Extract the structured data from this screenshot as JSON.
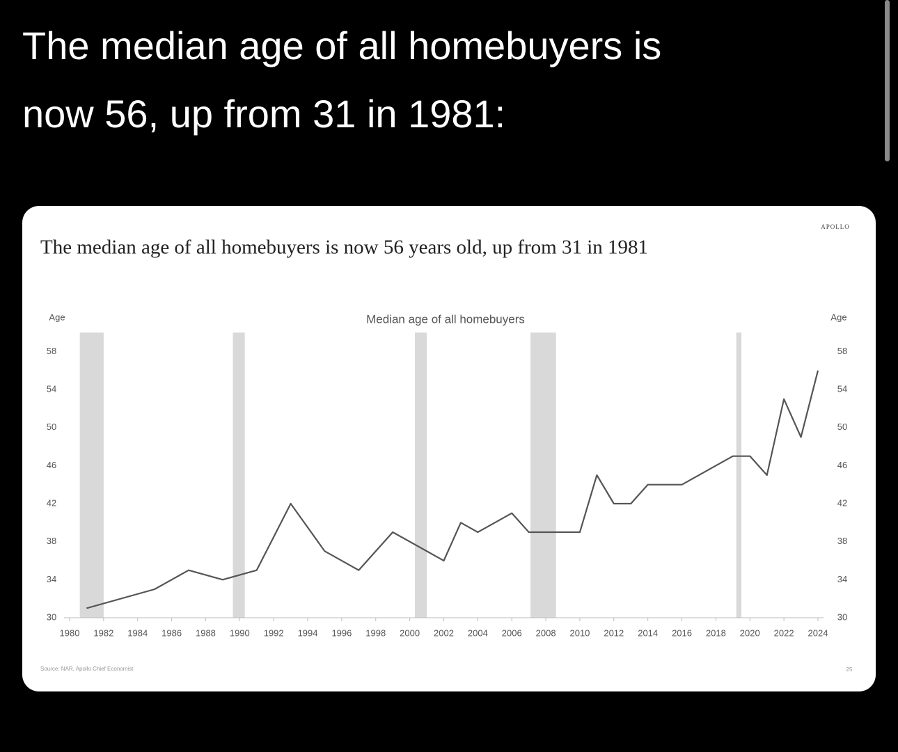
{
  "tweet_text": [
    "The median age of all homebuyers is",
    "now 56, up from 31 in 1981:"
  ],
  "chart_data": {
    "type": "line",
    "title": "The median age of all homebuyers is now 56 years old, up from 31 in 1981",
    "subtitle": "Median age of all homebuyers",
    "brand": "APOLLO",
    "y_label": "Age",
    "y2_label": "Age",
    "source": "Source: NAR, Apollo Chief Economist",
    "page_number": "25",
    "x": [
      1981,
      1985,
      1987,
      1989,
      1991,
      1993,
      1995,
      1997,
      1999,
      2002,
      2003,
      2004,
      2006,
      2007,
      2010,
      2011,
      2012,
      2013,
      2014,
      2016,
      2019,
      2020,
      2021,
      2022,
      2023,
      2024
    ],
    "values": [
      31,
      33,
      35,
      34,
      35,
      42,
      37,
      35,
      39,
      36,
      40,
      39,
      41,
      39,
      39,
      45,
      42,
      42,
      44,
      44,
      47,
      47,
      45,
      53,
      49,
      56
    ],
    "color": "#555555",
    "shaded_periods": [
      [
        1980.6,
        1982.0
      ],
      [
        1989.6,
        1990.3
      ],
      [
        2000.3,
        2001.0
      ],
      [
        2007.1,
        2008.6
      ],
      [
        2019.2,
        2019.5
      ]
    ],
    "shade_color": "#d9d9d9",
    "xlim": [
      1980,
      2024
    ],
    "xticks": [
      1980,
      1982,
      1984,
      1986,
      1988,
      1990,
      1992,
      1994,
      1996,
      1998,
      2000,
      2002,
      2004,
      2006,
      2008,
      2010,
      2012,
      2014,
      2016,
      2018,
      2020,
      2022,
      2024
    ],
    "ylim": [
      30,
      60
    ],
    "yticks": [
      30,
      34,
      38,
      42,
      46,
      50,
      54,
      58
    ],
    "grid": false
  }
}
